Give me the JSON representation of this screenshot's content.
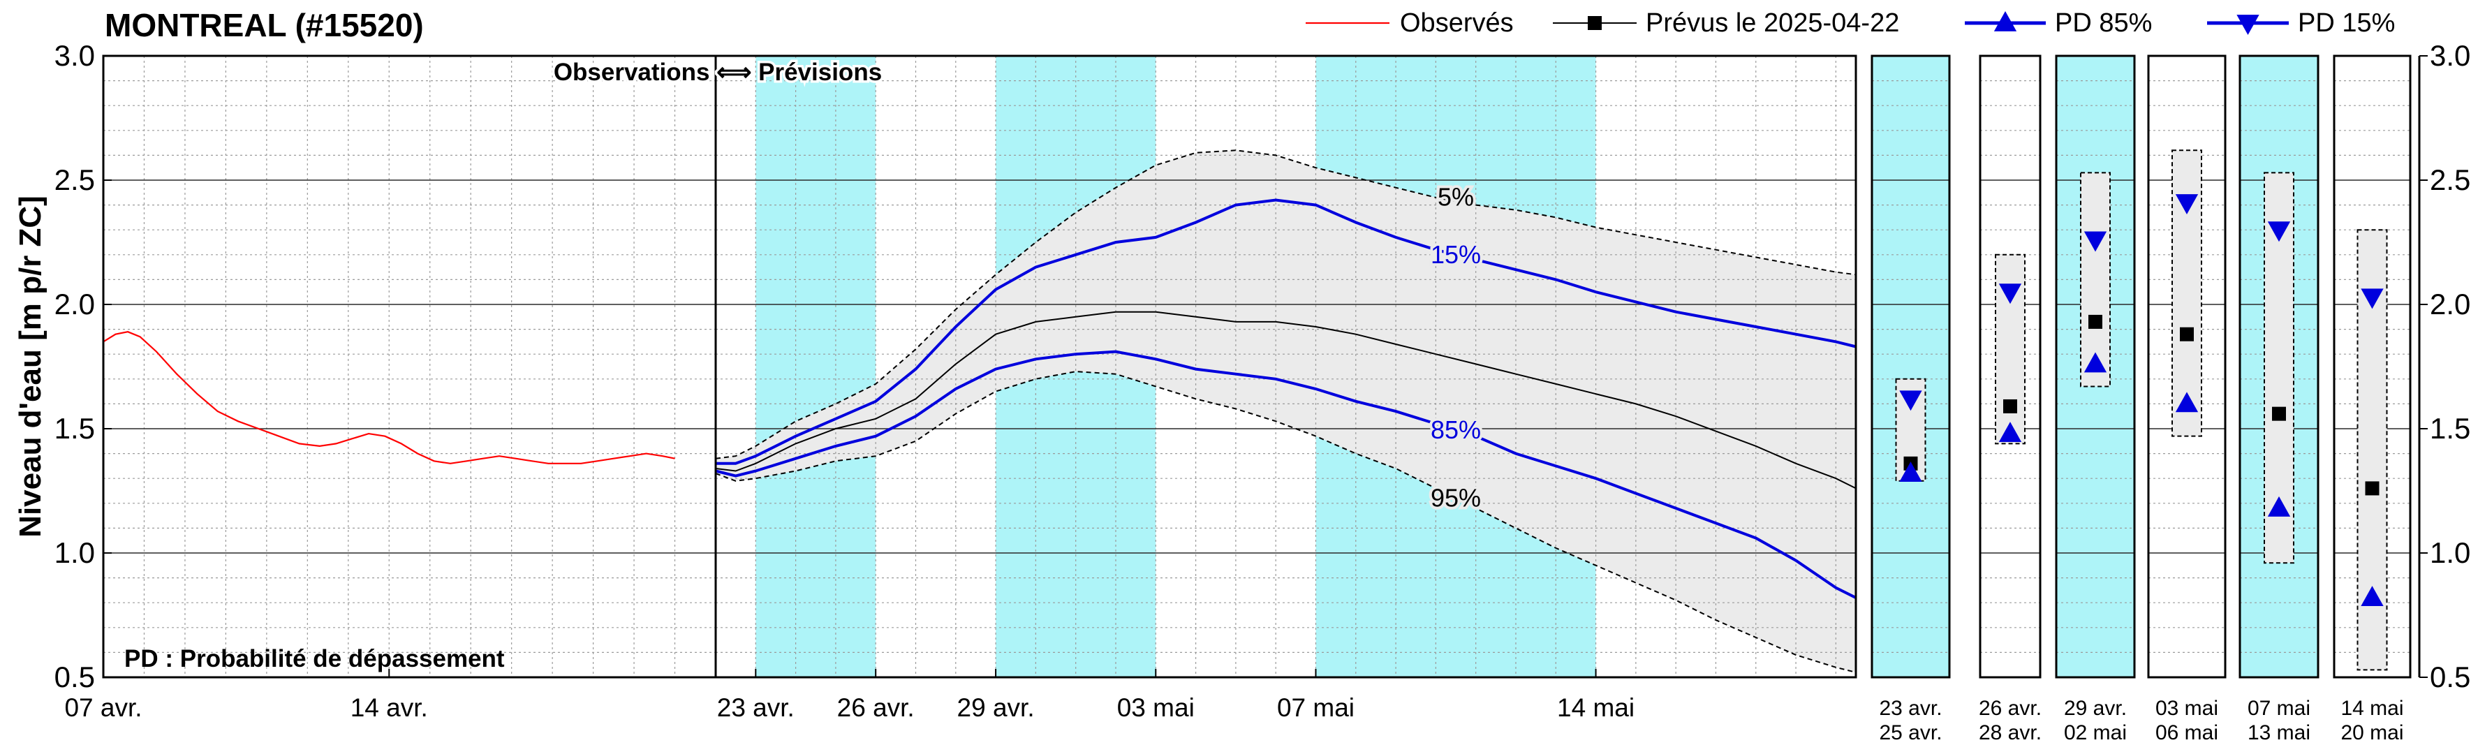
{
  "chart_data": {
    "type": "line",
    "title": "MONTREAL (#15520)",
    "ylabel": "Niveau d'eau [m p/r ZC]",
    "ylim": [
      0.5,
      3.0
    ],
    "yticks": [
      "0.5",
      "1.0",
      "1.5",
      "2.0",
      "2.5",
      "3.0"
    ],
    "legend": {
      "placement": "top-right",
      "items": [
        {
          "label": "Observés",
          "style": "line",
          "color": "#ff0000"
        },
        {
          "label": "Prévus le 2025-04-22",
          "style": "line-square",
          "color": "#000000"
        },
        {
          "label": "PD 85%",
          "style": "line-triangle-up",
          "color": "#0000dd"
        },
        {
          "label": "PD 15%",
          "style": "line-triangle-down",
          "color": "#0000dd"
        }
      ]
    },
    "divider_label": "Observations ⟺ Prévisions",
    "footnote": "PD : Probabilité de dépassement",
    "band_labels": {
      "p5": "5%",
      "p15": "15%",
      "p85": "85%",
      "p95": "95%"
    },
    "colors": {
      "observed": "#ff0000",
      "forecast": "#000000",
      "pd": "#0000dd",
      "band_fill": "#ebebeb",
      "highlight": "#aef4f8"
    },
    "obs_panel": {
      "x_range": [
        0,
        15
      ],
      "xticks": [
        {
          "x": 0,
          "label": "07 avr."
        },
        {
          "x": 7,
          "label": "14 avr."
        }
      ],
      "observed": [
        [
          0,
          1.85
        ],
        [
          0.3,
          1.88
        ],
        [
          0.6,
          1.89
        ],
        [
          0.9,
          1.87
        ],
        [
          1.3,
          1.81
        ],
        [
          1.8,
          1.72
        ],
        [
          2.3,
          1.64
        ],
        [
          2.8,
          1.57
        ],
        [
          3.3,
          1.53
        ],
        [
          3.8,
          1.5
        ],
        [
          4.3,
          1.47
        ],
        [
          4.8,
          1.44
        ],
        [
          5.3,
          1.43
        ],
        [
          5.7,
          1.44
        ],
        [
          6.1,
          1.46
        ],
        [
          6.5,
          1.48
        ],
        [
          6.9,
          1.47
        ],
        [
          7.3,
          1.44
        ],
        [
          7.7,
          1.4
        ],
        [
          8.1,
          1.37
        ],
        [
          8.5,
          1.36
        ],
        [
          8.9,
          1.37
        ],
        [
          9.3,
          1.38
        ],
        [
          9.7,
          1.39
        ],
        [
          10.1,
          1.38
        ],
        [
          10.5,
          1.37
        ],
        [
          10.9,
          1.36
        ],
        [
          11.3,
          1.36
        ],
        [
          11.7,
          1.36
        ],
        [
          12.1,
          1.37
        ],
        [
          12.5,
          1.38
        ],
        [
          12.9,
          1.39
        ],
        [
          13.3,
          1.4
        ],
        [
          13.7,
          1.39
        ],
        [
          14.0,
          1.38
        ]
      ]
    },
    "fc_panel": {
      "x_range": [
        0,
        28.5
      ],
      "xticks": [
        {
          "x": 1,
          "label": "23 avr."
        },
        {
          "x": 4,
          "label": "26 avr."
        },
        {
          "x": 7,
          "label": "29 avr."
        },
        {
          "x": 11,
          "label": "03 mai"
        },
        {
          "x": 15,
          "label": "07 mai"
        },
        {
          "x": 22,
          "label": "14 mai"
        }
      ],
      "highlights": [
        [
          1,
          4
        ],
        [
          7,
          11
        ],
        [
          15,
          22
        ]
      ],
      "p5": [
        [
          0,
          1.38
        ],
        [
          0.5,
          1.39
        ],
        [
          1,
          1.43
        ],
        [
          2,
          1.53
        ],
        [
          3,
          1.6
        ],
        [
          4,
          1.68
        ],
        [
          5,
          1.82
        ],
        [
          6,
          1.98
        ],
        [
          7,
          2.12
        ],
        [
          8,
          2.25
        ],
        [
          9,
          2.37
        ],
        [
          10,
          2.47
        ],
        [
          11,
          2.56
        ],
        [
          12,
          2.61
        ],
        [
          13,
          2.62
        ],
        [
          14,
          2.6
        ],
        [
          15,
          2.55
        ],
        [
          16,
          2.51
        ],
        [
          17,
          2.47
        ],
        [
          18,
          2.43
        ],
        [
          19,
          2.4
        ],
        [
          20,
          2.38
        ],
        [
          21,
          2.35
        ],
        [
          22,
          2.31
        ],
        [
          23,
          2.28
        ],
        [
          24,
          2.25
        ],
        [
          25,
          2.22
        ],
        [
          26,
          2.19
        ],
        [
          27,
          2.16
        ],
        [
          28,
          2.13
        ],
        [
          28.5,
          2.12
        ]
      ],
      "p15": [
        [
          0,
          1.36
        ],
        [
          0.5,
          1.36
        ],
        [
          1,
          1.39
        ],
        [
          2,
          1.47
        ],
        [
          3,
          1.54
        ],
        [
          4,
          1.61
        ],
        [
          5,
          1.74
        ],
        [
          6,
          1.91
        ],
        [
          7,
          2.06
        ],
        [
          8,
          2.15
        ],
        [
          9,
          2.2
        ],
        [
          10,
          2.25
        ],
        [
          11,
          2.27
        ],
        [
          12,
          2.33
        ],
        [
          13,
          2.4
        ],
        [
          14,
          2.42
        ],
        [
          15,
          2.4
        ],
        [
          16,
          2.33
        ],
        [
          17,
          2.27
        ],
        [
          18,
          2.22
        ],
        [
          19,
          2.18
        ],
        [
          20,
          2.14
        ],
        [
          21,
          2.1
        ],
        [
          22,
          2.05
        ],
        [
          23,
          2.01
        ],
        [
          24,
          1.97
        ],
        [
          25,
          1.94
        ],
        [
          26,
          1.91
        ],
        [
          27,
          1.88
        ],
        [
          28,
          1.85
        ],
        [
          28.5,
          1.83
        ]
      ],
      "forecast": [
        [
          0,
          1.34
        ],
        [
          0.5,
          1.33
        ],
        [
          1,
          1.36
        ],
        [
          2,
          1.44
        ],
        [
          3,
          1.5
        ],
        [
          4,
          1.54
        ],
        [
          5,
          1.62
        ],
        [
          6,
          1.76
        ],
        [
          7,
          1.88
        ],
        [
          8,
          1.93
        ],
        [
          9,
          1.95
        ],
        [
          10,
          1.97
        ],
        [
          11,
          1.97
        ],
        [
          12,
          1.95
        ],
        [
          13,
          1.93
        ],
        [
          14,
          1.93
        ],
        [
          15,
          1.91
        ],
        [
          16,
          1.88
        ],
        [
          17,
          1.84
        ],
        [
          18,
          1.8
        ],
        [
          19,
          1.76
        ],
        [
          20,
          1.72
        ],
        [
          21,
          1.68
        ],
        [
          22,
          1.64
        ],
        [
          23,
          1.6
        ],
        [
          24,
          1.55
        ],
        [
          25,
          1.49
        ],
        [
          26,
          1.43
        ],
        [
          27,
          1.36
        ],
        [
          28,
          1.3
        ],
        [
          28.5,
          1.26
        ]
      ],
      "p85": [
        [
          0,
          1.33
        ],
        [
          0.5,
          1.31
        ],
        [
          1,
          1.33
        ],
        [
          2,
          1.38
        ],
        [
          3,
          1.43
        ],
        [
          4,
          1.47
        ],
        [
          5,
          1.55
        ],
        [
          6,
          1.66
        ],
        [
          7,
          1.74
        ],
        [
          8,
          1.78
        ],
        [
          9,
          1.8
        ],
        [
          10,
          1.81
        ],
        [
          11,
          1.78
        ],
        [
          12,
          1.74
        ],
        [
          13,
          1.72
        ],
        [
          14,
          1.7
        ],
        [
          15,
          1.66
        ],
        [
          16,
          1.61
        ],
        [
          17,
          1.57
        ],
        [
          18,
          1.52
        ],
        [
          19,
          1.47
        ],
        [
          20,
          1.4
        ],
        [
          21,
          1.35
        ],
        [
          22,
          1.3
        ],
        [
          23,
          1.24
        ],
        [
          24,
          1.18
        ],
        [
          25,
          1.12
        ],
        [
          26,
          1.06
        ],
        [
          27,
          0.97
        ],
        [
          28,
          0.86
        ],
        [
          28.5,
          0.82
        ]
      ],
      "p95": [
        [
          0,
          1.32
        ],
        [
          0.5,
          1.29
        ],
        [
          1,
          1.3
        ],
        [
          2,
          1.33
        ],
        [
          3,
          1.37
        ],
        [
          4,
          1.39
        ],
        [
          5,
          1.45
        ],
        [
          6,
          1.56
        ],
        [
          7,
          1.65
        ],
        [
          8,
          1.7
        ],
        [
          9,
          1.73
        ],
        [
          10,
          1.72
        ],
        [
          11,
          1.67
        ],
        [
          12,
          1.62
        ],
        [
          13,
          1.58
        ],
        [
          14,
          1.53
        ],
        [
          15,
          1.47
        ],
        [
          16,
          1.4
        ],
        [
          17,
          1.34
        ],
        [
          18,
          1.26
        ],
        [
          19,
          1.18
        ],
        [
          20,
          1.1
        ],
        [
          21,
          1.02
        ],
        [
          22,
          0.95
        ],
        [
          23,
          0.88
        ],
        [
          24,
          0.81
        ],
        [
          25,
          0.73
        ],
        [
          26,
          0.66
        ],
        [
          27,
          0.59
        ],
        [
          28,
          0.54
        ],
        [
          28.5,
          0.52
        ]
      ]
    },
    "summary_panels": [
      {
        "label_top": "23 avr.",
        "label_bottom": "25 avr.",
        "highlighted": true,
        "box": [
          1.29,
          1.7
        ],
        "pd15": 1.62,
        "forecast": 1.36,
        "pd85": 1.32
      },
      {
        "label_top": "26 avr.",
        "label_bottom": "28 avr.",
        "highlighted": false,
        "box": [
          1.44,
          2.2
        ],
        "pd15": 2.05,
        "forecast": 1.59,
        "pd85": 1.48
      },
      {
        "label_top": "29 avr.",
        "label_bottom": "02 mai",
        "highlighted": true,
        "box": [
          1.67,
          2.53
        ],
        "pd15": 2.26,
        "forecast": 1.93,
        "pd85": 1.76
      },
      {
        "label_top": "03 mai",
        "label_bottom": "06 mai",
        "highlighted": false,
        "box": [
          1.47,
          2.62
        ],
        "pd15": 2.41,
        "forecast": 1.88,
        "pd85": 1.6
      },
      {
        "label_top": "07 mai",
        "label_bottom": "13 mai",
        "highlighted": true,
        "box": [
          0.96,
          2.53
        ],
        "pd15": 2.3,
        "forecast": 1.56,
        "pd85": 1.18
      },
      {
        "label_top": "14 mai",
        "label_bottom": "20 mai",
        "highlighted": false,
        "box": [
          0.53,
          2.3
        ],
        "pd15": 2.03,
        "forecast": 1.26,
        "pd85": 0.82
      }
    ]
  }
}
